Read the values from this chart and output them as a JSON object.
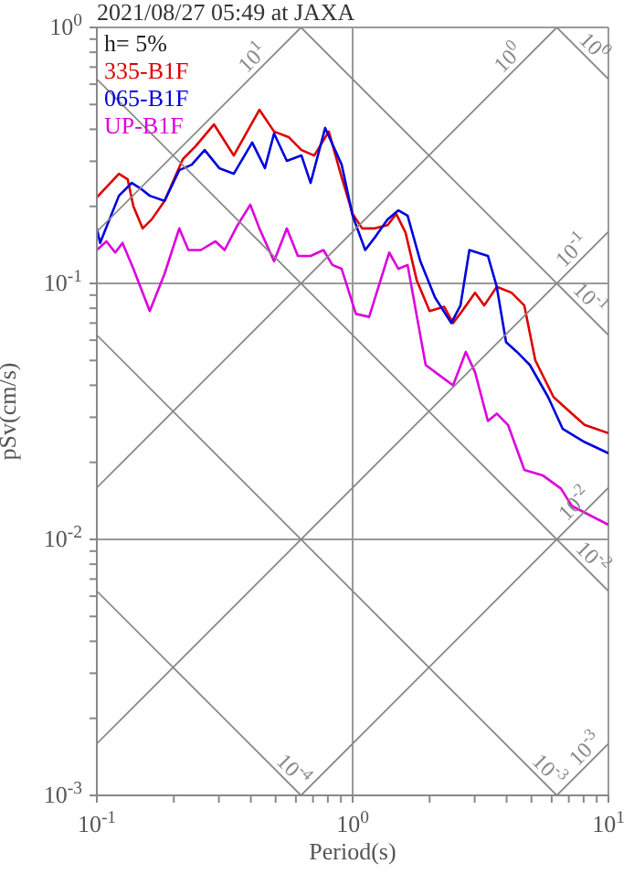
{
  "chart_data": {
    "type": "line",
    "title": "2021/08/27 05:49 at JAXA",
    "xlabel": "Period(s)",
    "ylabel": "pSv(cm/s)",
    "legend_title": "h= 5%",
    "legend": "top left",
    "log": "xy",
    "grid": true,
    "xlim": [
      0.1,
      10
    ],
    "ylim": [
      0.001,
      1
    ],
    "xticks": [
      {
        "value": 0.1,
        "label": "10$^{-1}$"
      },
      {
        "value": 0.2,
        "label": null
      },
      {
        "value": 0.3,
        "label": null
      },
      {
        "value": 0.4,
        "label": null
      },
      {
        "value": 0.5,
        "label": null
      },
      {
        "value": 0.6,
        "label": null
      },
      {
        "value": 0.7,
        "label": null
      },
      {
        "value": 0.8,
        "label": null
      },
      {
        "value": 0.9,
        "label": null
      },
      {
        "value": 1,
        "label": "10$^{0}$"
      },
      {
        "value": 2,
        "label": null
      },
      {
        "value": 3,
        "label": null
      },
      {
        "value": 4,
        "label": null
      },
      {
        "value": 5,
        "label": null
      },
      {
        "value": 6,
        "label": null
      },
      {
        "value": 7,
        "label": null
      },
      {
        "value": 8,
        "label": null
      },
      {
        "value": 9,
        "label": null
      },
      {
        "value": 10,
        "label": "10$^{1}$"
      }
    ],
    "yticks": [
      {
        "value": 0.001,
        "label": "10$^{-3}$"
      },
      {
        "value": 0.002,
        "label": null
      },
      {
        "value": 0.003,
        "label": null
      },
      {
        "value": 0.004,
        "label": null
      },
      {
        "value": 0.005,
        "label": null
      },
      {
        "value": 0.006,
        "label": null
      },
      {
        "value": 0.007,
        "label": null
      },
      {
        "value": 0.008,
        "label": null
      },
      {
        "value": 0.009,
        "label": null
      },
      {
        "value": 0.01,
        "label": "10$^{-2}$"
      },
      {
        "value": 0.02,
        "label": null
      },
      {
        "value": 0.03,
        "label": null
      },
      {
        "value": 0.04,
        "label": null
      },
      {
        "value": 0.05,
        "label": null
      },
      {
        "value": 0.06,
        "label": null
      },
      {
        "value": 0.07,
        "label": null
      },
      {
        "value": 0.08,
        "label": null
      },
      {
        "value": 0.09,
        "label": null
      },
      {
        "value": 0.1,
        "label": "10$^{-1}$"
      },
      {
        "value": 0.2,
        "label": null
      },
      {
        "value": 0.3,
        "label": null
      },
      {
        "value": 0.4,
        "label": null
      },
      {
        "value": 0.5,
        "label": null
      },
      {
        "value": 0.6,
        "label": null
      },
      {
        "value": 0.7,
        "label": null
      },
      {
        "value": 0.8,
        "label": null
      },
      {
        "value": 0.9,
        "label": null
      },
      {
        "value": 1,
        "label": "10$^{0}$"
      }
    ],
    "series": [
      {
        "name": "335-B1F",
        "color": "#dd0000",
        "x": [
          0.1,
          0.122,
          0.132,
          0.139,
          0.151,
          0.164,
          0.184,
          0.217,
          0.243,
          0.287,
          0.343,
          0.432,
          0.493,
          0.562,
          0.631,
          0.708,
          0.807,
          0.906,
          1.0,
          1.09,
          1.22,
          1.37,
          1.48,
          1.61,
          1.78,
          2.0,
          2.28,
          2.47,
          2.68,
          3.01,
          3.27,
          3.66,
          4.18,
          4.69,
          5.18,
          6.1,
          7.2,
          8.07,
          10
        ],
        "values": [
          0.217,
          0.268,
          0.255,
          0.2,
          0.164,
          0.178,
          0.21,
          0.306,
          0.343,
          0.418,
          0.316,
          0.477,
          0.392,
          0.373,
          0.332,
          0.316,
          0.392,
          0.26,
          0.187,
          0.164,
          0.164,
          0.169,
          0.187,
          0.158,
          0.103,
          0.078,
          0.081,
          0.07,
          0.078,
          0.092,
          0.082,
          0.097,
          0.092,
          0.082,
          0.05,
          0.036,
          0.031,
          0.028,
          0.026
        ]
      },
      {
        "name": "065-B1F",
        "color": "#0000dd",
        "x": [
          0.1,
          0.103,
          0.122,
          0.137,
          0.148,
          0.161,
          0.184,
          0.21,
          0.235,
          0.264,
          0.301,
          0.343,
          0.405,
          0.454,
          0.493,
          0.553,
          0.631,
          0.685,
          0.781,
          0.906,
          1.0,
          1.12,
          1.22,
          1.37,
          1.51,
          1.64,
          1.84,
          2.1,
          2.43,
          2.64,
          2.86,
          3.38,
          3.66,
          3.98,
          4.39,
          4.93,
          5.81,
          6.63,
          8.07,
          10
        ],
        "values": [
          0.164,
          0.144,
          0.22,
          0.247,
          0.235,
          0.22,
          0.21,
          0.277,
          0.291,
          0.332,
          0.282,
          0.268,
          0.355,
          0.282,
          0.385,
          0.301,
          0.316,
          0.247,
          0.405,
          0.291,
          0.184,
          0.135,
          0.151,
          0.178,
          0.193,
          0.184,
          0.122,
          0.088,
          0.07,
          0.082,
          0.135,
          0.128,
          0.097,
          0.059,
          0.054,
          0.048,
          0.036,
          0.027,
          0.024,
          0.0217
        ]
      },
      {
        "name": "UP-B1F",
        "color": "#dd00dd",
        "x": [
          0.1,
          0.109,
          0.118,
          0.126,
          0.139,
          0.161,
          0.184,
          0.21,
          0.228,
          0.255,
          0.291,
          0.316,
          0.355,
          0.398,
          0.432,
          0.493,
          0.553,
          0.611,
          0.685,
          0.769,
          0.834,
          0.906,
          1.03,
          1.16,
          1.39,
          1.51,
          1.64,
          1.93,
          2.17,
          2.47,
          2.77,
          3.01,
          3.38,
          3.66,
          4.05,
          4.69,
          5.53,
          6.52,
          7.2,
          10
        ],
        "values": [
          0.135,
          0.146,
          0.132,
          0.144,
          0.114,
          0.078,
          0.109,
          0.164,
          0.135,
          0.135,
          0.146,
          0.135,
          0.169,
          0.203,
          0.164,
          0.122,
          0.164,
          0.128,
          0.128,
          0.135,
          0.118,
          0.114,
          0.076,
          0.074,
          0.132,
          0.114,
          0.118,
          0.048,
          0.044,
          0.04,
          0.054,
          0.045,
          0.029,
          0.031,
          0.028,
          0.0187,
          0.0178,
          0.0158,
          0.0135,
          0.0114
        ]
      },
      {
        "color": "#888888",
        "x": [
          0.1,
          0.6283
        ],
        "values": [
          0.1592,
          1
        ]
      },
      {
        "color": "#888888",
        "x": [
          0.1,
          6.283
        ],
        "values": [
          0.01592,
          1
        ]
      },
      {
        "color": "#888888",
        "x": [
          0.1,
          10
        ],
        "values": [
          0.001592,
          0.1592
        ]
      },
      {
        "color": "#888888",
        "x": [
          0.6283,
          10
        ],
        "values": [
          0.001,
          0.01592
        ]
      },
      {
        "color": "#888888",
        "x": [
          6.283,
          10
        ],
        "values": [
          0.001,
          0.001592
        ]
      },
      {
        "color": "#888888",
        "x": [
          6.283,
          10
        ],
        "values": [
          1,
          0.6283
        ]
      },
      {
        "color": "#888888",
        "x": [
          0.6283,
          10
        ],
        "values": [
          1,
          0.06283
        ]
      },
      {
        "color": "#888888",
        "x": [
          0.1,
          10
        ],
        "values": [
          0.6283,
          0.006283
        ]
      },
      {
        "color": "#888888",
        "x": [
          0.1,
          6.283
        ],
        "values": [
          0.06283,
          0.001
        ]
      },
      {
        "color": "#888888",
        "x": [
          0.1,
          0.6283
        ],
        "values": [
          0.006283,
          0.001
        ]
      }
    ],
    "annotations": [
      {
        "text": "10$^{1}$",
        "x": 0.44,
        "y": 0.7
      },
      {
        "text": "10$^{0}$",
        "x": 4.4,
        "y": 0.7
      },
      {
        "text": "10$^{0}$",
        "x": 8.1,
        "y": 0.776
      },
      {
        "text": "10$^{-1}$",
        "x": 7.8,
        "y": 0.124
      },
      {
        "text": "10$^{-1}$",
        "x": 7.8,
        "y": 0.0805
      },
      {
        "text": "10$^{-2}$",
        "x": 8.0,
        "y": 0.0127
      },
      {
        "text": "10$^{-2}$",
        "x": 8.0,
        "y": 0.00785
      },
      {
        "text": "10$^{-3}$",
        "x": 8.8,
        "y": 0.0014
      },
      {
        "text": "10$^{-3}$",
        "x": 5.4,
        "y": 0.00116
      },
      {
        "text": "10$^{-4}$",
        "x": 0.54,
        "y": 0.00116
      }
    ]
  }
}
